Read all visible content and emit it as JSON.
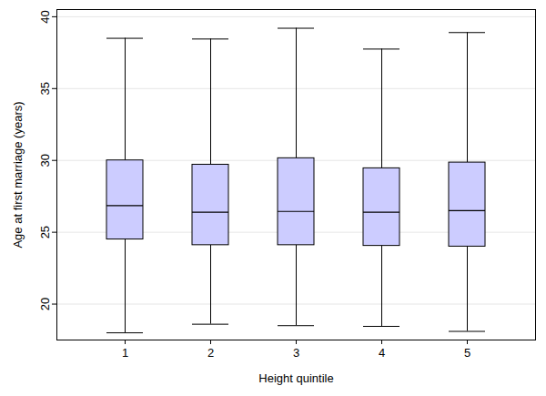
{
  "chart_data": {
    "type": "box",
    "xlabel": "Height quintile",
    "ylabel": "Age at first marriage (years)",
    "categories": [
      "1",
      "2",
      "3",
      "4",
      "5"
    ],
    "whisker_low": [
      18.0,
      18.6,
      18.5,
      18.45,
      18.1
    ],
    "q1": [
      24.5,
      24.1,
      24.1,
      24.05,
      24.0
    ],
    "median": [
      26.85,
      26.4,
      26.45,
      26.4,
      26.5
    ],
    "q3": [
      30.0,
      29.7,
      30.15,
      29.45,
      29.85
    ],
    "whisker_high": [
      38.5,
      38.45,
      39.2,
      37.75,
      38.9
    ],
    "color": "#ccccff",
    "ylim": [
      17.5,
      40.5
    ],
    "yticks": [
      20,
      25,
      30,
      35,
      40
    ],
    "grid": true
  }
}
